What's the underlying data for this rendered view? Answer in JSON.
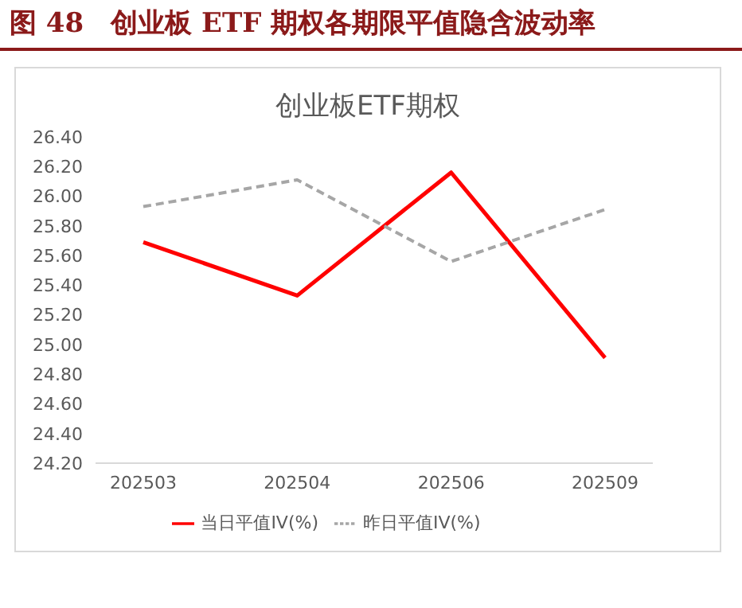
{
  "chart_data": {
    "type": "line",
    "title": "图 48　创业板 ETF 期权各期限平值隐含波动率",
    "subtitle": "创业板ETF期权",
    "categories": [
      "202503",
      "202504",
      "202506",
      "202509"
    ],
    "series": [
      {
        "name": "当日平值IV(%)",
        "color": "#ff0000",
        "values": [
          25.69,
          25.33,
          26.16,
          24.91
        ],
        "line_style": "solid"
      },
      {
        "name": "昨日平值IV(%)",
        "color": "#a6a6a6",
        "values": [
          25.93,
          26.11,
          25.56,
          25.91
        ],
        "line_style": "dashed"
      }
    ],
    "ylim": [
      24.2,
      26.4
    ],
    "yticks": [
      {
        "value": 24.2,
        "label": "24.20"
      },
      {
        "value": 24.4,
        "label": "24.40"
      },
      {
        "value": 24.6,
        "label": "24.60"
      },
      {
        "value": 24.8,
        "label": "24.80"
      },
      {
        "value": 25.0,
        "label": "25.00"
      },
      {
        "value": 25.2,
        "label": "25.20"
      },
      {
        "value": 25.4,
        "label": "25.40"
      },
      {
        "value": 25.6,
        "label": "25.60"
      },
      {
        "value": 25.8,
        "label": "25.80"
      },
      {
        "value": 26.0,
        "label": "26.00"
      },
      {
        "value": 26.2,
        "label": "26.20"
      },
      {
        "value": 26.4,
        "label": "26.40"
      }
    ],
    "grid": false,
    "legend": "bottom",
    "marker": "none"
  }
}
